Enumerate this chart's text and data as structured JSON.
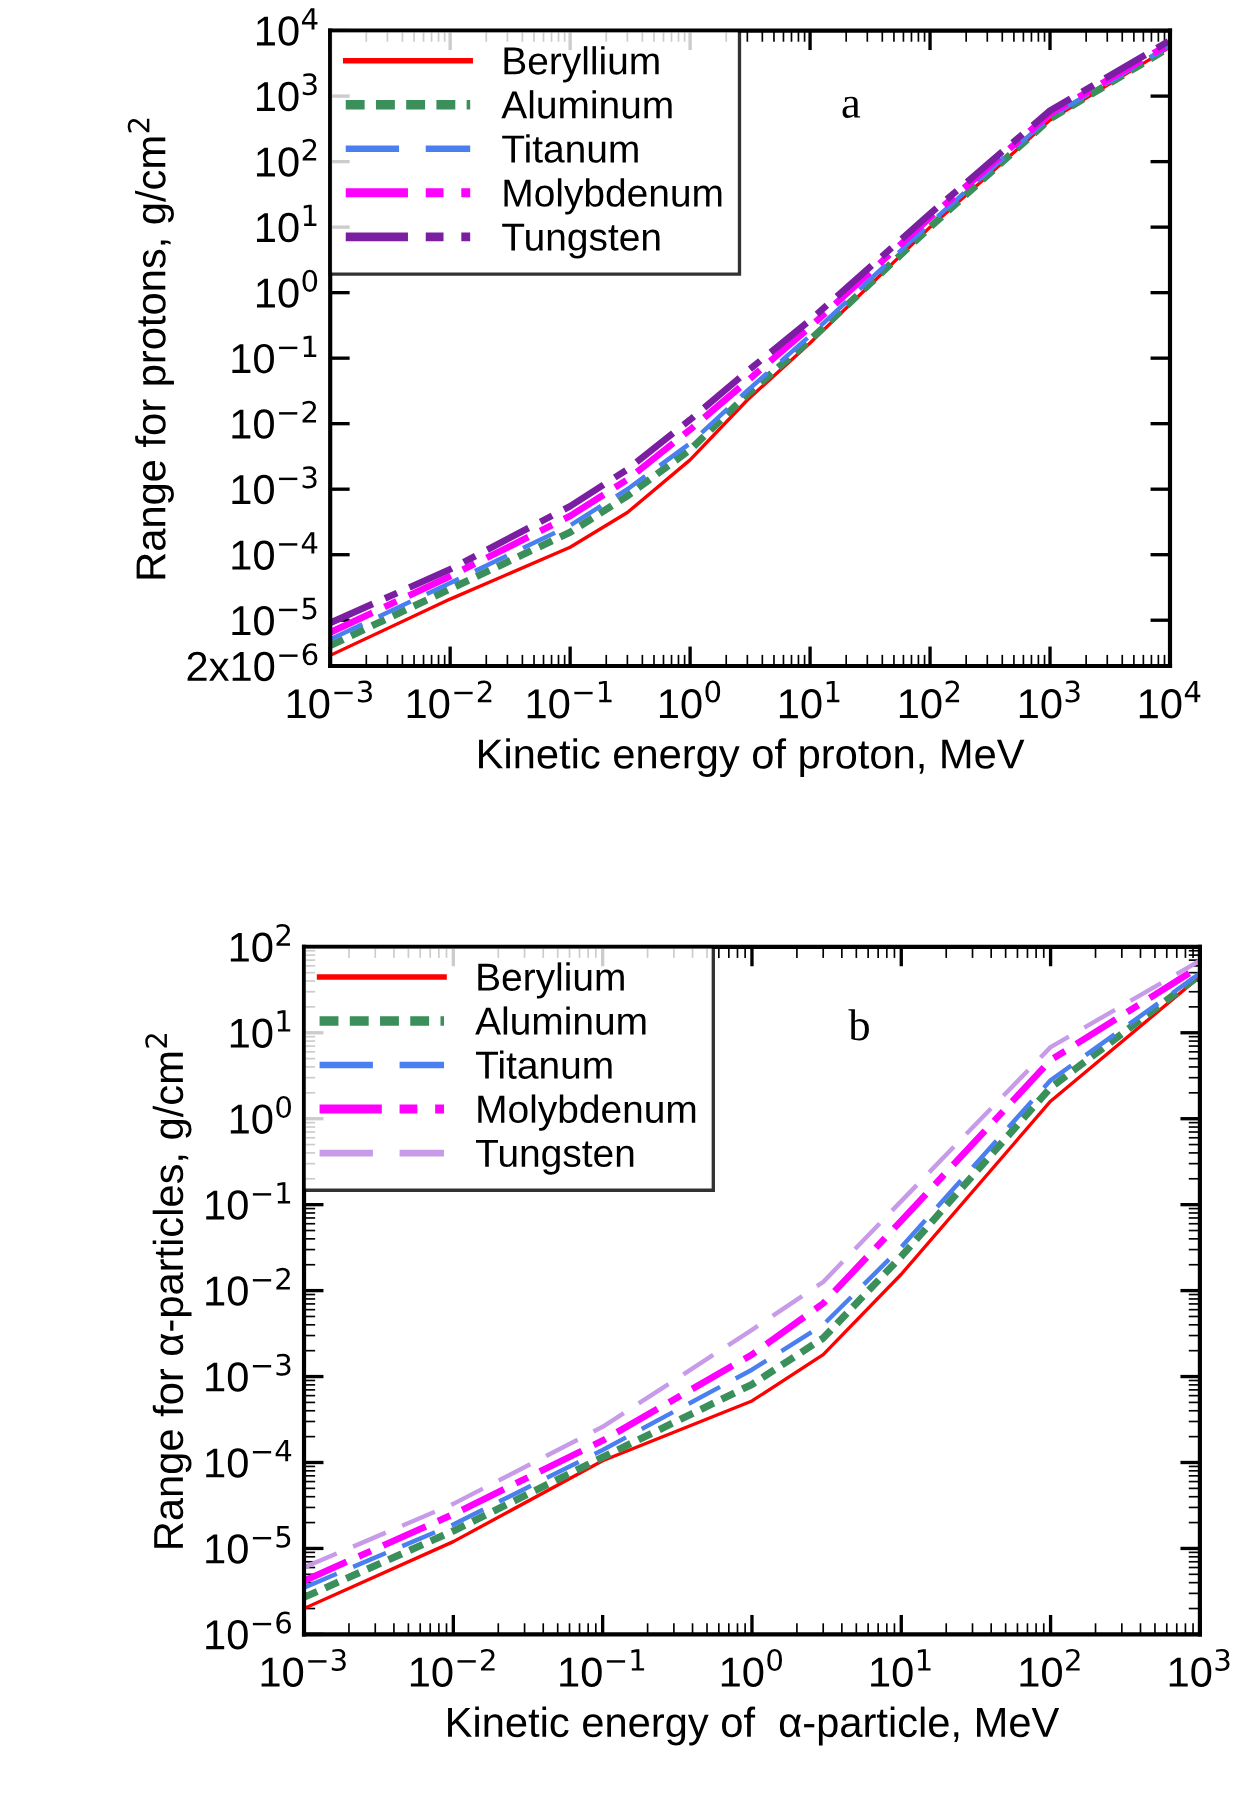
{
  "chart_data": [
    {
      "type": "line",
      "xlabel": "Kinetic energy of proton, MeV",
      "ylabel": "Range for protons, g/cm$^{2}$",
      "annotations": [
        "a"
      ],
      "log": "xy",
      "legend": "top left",
      "grid": false,
      "x": [
        0.001,
        0.01,
        0.1,
        0.3,
        1,
        3,
        10,
        100,
        1000,
        10000
      ],
      "xlim": [
        0.001,
        10000
      ],
      "ylim": [
        2e-06,
        10000
      ],
      "xticks": [
        {
          "value": 0.001,
          "label": "10$^{−3}$"
        },
        {
          "value": 0.01,
          "label": "10$^{−2}$"
        },
        {
          "value": 0.1,
          "label": "10$^{−1}$"
        },
        {
          "value": 1,
          "label": "10$^{0}$"
        },
        {
          "value": 10,
          "label": "10$^{1}$"
        },
        {
          "value": 100,
          "label": "10$^{2}$"
        },
        {
          "value": 1000,
          "label": "10$^{3}$"
        },
        {
          "value": 10000,
          "label": "10$^{4}$"
        }
      ],
      "yticks": [
        {
          "value": 2e-06,
          "label": "2x10$^{−6}$"
        },
        {
          "value": 1e-05,
          "label": "10$^{−5}$"
        },
        {
          "value": 0.0001,
          "label": "10$^{−4}$"
        },
        {
          "value": 0.001,
          "label": "10$^{−3}$"
        },
        {
          "value": 0.01,
          "label": "10$^{−2}$"
        },
        {
          "value": 0.1,
          "label": "10$^{−1}$"
        },
        {
          "value": 1,
          "label": "10$^{0}$"
        },
        {
          "value": 10,
          "label": "10$^{1}$"
        },
        {
          "value": 100,
          "label": "10$^{2}$"
        },
        {
          "value": 1000,
          "label": "10$^{3}$"
        },
        {
          "value": 10000,
          "label": "10$^{4}$"
        }
      ],
      "series": [
        {
          "name": "Beryllium",
          "color": "#ff0000",
          "line_style": "solid",
          "values": [
            2.9e-06,
            2.1e-05,
            0.00013,
            0.00044,
            0.0028,
            0.023,
            0.17,
            10,
            430,
            5600
          ]
        },
        {
          "name": "Aluminum",
          "color": "#3a8f5a",
          "line_style": "dotted",
          "values": [
            4.1e-06,
            3e-05,
            0.00022,
            0.00079,
            0.004,
            0.028,
            0.19,
            10,
            450,
            5600
          ]
        },
        {
          "name": "Titanum",
          "color": "#4a7ff0",
          "line_style": "dashed",
          "values": [
            5.1e-06,
            3.7e-05,
            0.00028,
            0.001,
            0.005,
            0.032,
            0.22,
            11.5,
            480,
            5900
          ]
        },
        {
          "name": "Molybdenum",
          "color": "#ff00ff",
          "line_style": "dashdot",
          "values": [
            6.5e-06,
            4.7e-05,
            0.00039,
            0.0014,
            0.0081,
            0.045,
            0.3,
            14,
            540,
            6300
          ]
        },
        {
          "name": "Tungsten",
          "color": "#7b1fa2",
          "line_style": "dashdot",
          "values": [
            9.1e-06,
            6e-05,
            0.00055,
            0.002,
            0.0115,
            0.063,
            0.38,
            16,
            600,
            7100
          ]
        }
      ]
    },
    {
      "type": "line",
      "xlabel": "Kinetic energy of  α-particle, MeV",
      "ylabel": "Range for α-particles, g/cm$^{2}$",
      "annotations": [
        "b"
      ],
      "log": "xy",
      "legend": "top left",
      "grid": false,
      "x": [
        0.001,
        0.01,
        0.1,
        1,
        3,
        10,
        100,
        1000
      ],
      "xlim": [
        0.001,
        1000
      ],
      "ylim": [
        1e-06,
        100
      ],
      "xticks": [
        {
          "value": 0.001,
          "label": "10$^{−3}$"
        },
        {
          "value": 0.01,
          "label": "10$^{−2}$"
        },
        {
          "value": 0.1,
          "label": "10$^{−1}$"
        },
        {
          "value": 1,
          "label": "10$^{0}$"
        },
        {
          "value": 10,
          "label": "10$^{1}$"
        },
        {
          "value": 100,
          "label": "10$^{2}$"
        },
        {
          "value": 1000,
          "label": "10$^{3}$"
        }
      ],
      "yticks": [
        {
          "value": 1e-06,
          "label": "10$^{−6}$"
        },
        {
          "value": 1e-05,
          "label": "10$^{−5}$"
        },
        {
          "value": 0.0001,
          "label": "10$^{−4}$"
        },
        {
          "value": 0.001,
          "label": "10$^{−3}$"
        },
        {
          "value": 0.01,
          "label": "10$^{−2}$"
        },
        {
          "value": 0.1,
          "label": "10$^{−1}$"
        },
        {
          "value": 1,
          "label": "10$^{0}$"
        },
        {
          "value": 10,
          "label": "10$^{1}$"
        },
        {
          "value": 100,
          "label": "10$^{2}$"
        }
      ],
      "series": [
        {
          "name": "Berylium",
          "color": "#ff0000",
          "line_style": "solid",
          "values": [
            2e-06,
            1.2e-05,
            0.000105,
            0.00052,
            0.0018,
            0.0155,
            1.6,
            45
          ]
        },
        {
          "name": "Aluminum",
          "color": "#3a8f5a",
          "line_style": "dotted",
          "values": [
            2.7e-06,
            1.6e-05,
            0.000115,
            0.00081,
            0.0028,
            0.025,
            2.3,
            47
          ]
        },
        {
          "name": "Titanum",
          "color": "#4a7ff0",
          "line_style": "dashed",
          "values": [
            3.5e-06,
            1.9e-05,
            0.00014,
            0.0012,
            0.004,
            0.032,
            2.8,
            49
          ]
        },
        {
          "name": "Molybdenum",
          "color": "#ff00ff",
          "line_style": "dashdot",
          "values": [
            4.2e-06,
            2.5e-05,
            0.00018,
            0.0018,
            0.0071,
            0.065,
            4.8,
            59
          ]
        },
        {
          "name": "Tungsten",
          "color": "#c89be8",
          "line_style": "dashed",
          "values": [
            6e-06,
            3.3e-05,
            0.00026,
            0.0035,
            0.0126,
            0.11,
            6.8,
            69
          ]
        }
      ]
    }
  ]
}
